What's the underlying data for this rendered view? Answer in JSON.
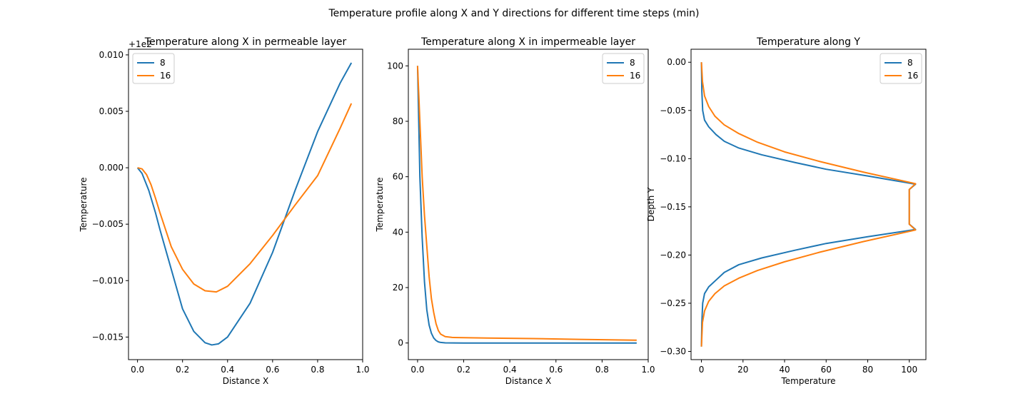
{
  "suptitle": "Temperature profile along X and Y directions for different time steps (min)",
  "colors": {
    "s8": "#1f77b4",
    "s16": "#ff7f0e"
  },
  "chart_data": [
    {
      "type": "line",
      "title": "Temperature along X in permeable layer",
      "xlabel": "Distance X",
      "ylabel": "Temperature",
      "offset_label": "+1e2",
      "xlim": [
        -0.04,
        1.0
      ],
      "ylim": [
        -0.017,
        0.0105
      ],
      "xticks": [
        0.0,
        0.2,
        0.4,
        0.6,
        0.8,
        1.0
      ],
      "xtick_labels": [
        "0.0",
        "0.2",
        "0.4",
        "0.6",
        "0.8",
        "1.0"
      ],
      "yticks": [
        -0.015,
        -0.01,
        -0.005,
        0.0,
        0.005,
        0.01
      ],
      "ytick_labels": [
        "−0.015",
        "−0.010",
        "−0.005",
        "0.000",
        "0.005",
        "0.010"
      ],
      "legend_position": "top-left",
      "series": [
        {
          "name": "8",
          "color": "#1f77b4",
          "x": [
            0.0,
            0.02,
            0.05,
            0.08,
            0.1,
            0.15,
            0.2,
            0.25,
            0.3,
            0.33,
            0.36,
            0.4,
            0.5,
            0.6,
            0.7,
            0.8,
            0.9,
            0.95
          ],
          "y": [
            0.0,
            -0.0005,
            -0.002,
            -0.004,
            -0.0055,
            -0.009,
            -0.0125,
            -0.0145,
            -0.0155,
            -0.0157,
            -0.0156,
            -0.015,
            -0.012,
            -0.0075,
            -0.002,
            0.0032,
            0.0075,
            0.0093
          ]
        },
        {
          "name": "16",
          "color": "#ff7f0e",
          "x": [
            0.0,
            0.02,
            0.04,
            0.06,
            0.08,
            0.1,
            0.15,
            0.2,
            0.25,
            0.3,
            0.35,
            0.4,
            0.5,
            0.6,
            0.7,
            0.8,
            0.9,
            0.95
          ],
          "y": [
            0.0,
            -0.0001,
            -0.0006,
            -0.0015,
            -0.0027,
            -0.004,
            -0.007,
            -0.009,
            -0.0103,
            -0.0109,
            -0.011,
            -0.0105,
            -0.0085,
            -0.006,
            -0.0033,
            -0.0007,
            0.0035,
            0.0057
          ]
        }
      ]
    },
    {
      "type": "line",
      "title": "Temperature along X in impermeable layer",
      "xlabel": "Distance X",
      "ylabel": "Temperature",
      "xlim": [
        -0.04,
        1.0
      ],
      "ylim": [
        -6.0,
        106.0
      ],
      "xticks": [
        0.0,
        0.2,
        0.4,
        0.6,
        0.8,
        1.0
      ],
      "xtick_labels": [
        "0.0",
        "0.2",
        "0.4",
        "0.6",
        "0.8",
        "1.0"
      ],
      "yticks": [
        0,
        20,
        40,
        60,
        80,
        100
      ],
      "ytick_labels": [
        "0",
        "20",
        "40",
        "60",
        "80",
        "100"
      ],
      "legend_position": "top-right",
      "series": [
        {
          "name": "8",
          "color": "#1f77b4",
          "x": [
            0.0,
            0.005,
            0.01,
            0.02,
            0.03,
            0.04,
            0.05,
            0.06,
            0.07,
            0.08,
            0.09,
            0.1,
            0.12,
            0.2,
            0.5,
            0.95
          ],
          "y": [
            100,
            80,
            60,
            38,
            22,
            12,
            6.5,
            3.5,
            1.8,
            0.9,
            0.4,
            0.2,
            0.05,
            0.0,
            0.0,
            0.0
          ]
        },
        {
          "name": "16",
          "color": "#ff7f0e",
          "x": [
            0.0,
            0.005,
            0.01,
            0.02,
            0.03,
            0.04,
            0.05,
            0.06,
            0.07,
            0.08,
            0.09,
            0.1,
            0.12,
            0.15,
            0.3,
            0.5,
            0.7,
            0.95
          ],
          "y": [
            100,
            90,
            80,
            60,
            46,
            35,
            24,
            16,
            11,
            7,
            4.5,
            3.2,
            2.3,
            2.0,
            1.8,
            1.6,
            1.3,
            1.0
          ]
        }
      ]
    },
    {
      "type": "line",
      "title": "Temperature along Y",
      "xlabel": "Temperature",
      "ylabel": "Depth Y",
      "xlim": [
        -5.0,
        108.0
      ],
      "ylim": [
        -0.3085,
        0.0135
      ],
      "xticks": [
        0,
        20,
        40,
        60,
        80,
        100
      ],
      "xtick_labels": [
        "0",
        "20",
        "40",
        "60",
        "80",
        "100"
      ],
      "yticks": [
        0.0,
        -0.05,
        -0.1,
        -0.15,
        -0.2,
        -0.25,
        -0.3
      ],
      "ytick_labels": [
        "0.00",
        "−0.05",
        "−0.10",
        "−0.15",
        "−0.20",
        "−0.25",
        "−0.30"
      ],
      "legend_position": "top-right",
      "series": [
        {
          "name": "8",
          "color": "#1f77b4",
          "x": [
            0.0,
            0.2,
            0.6,
            1.5,
            3.5,
            7,
            11,
            18,
            29,
            45,
            60,
            80,
            103,
            100,
            100,
            100,
            103,
            80,
            60,
            45,
            29,
            18,
            11,
            7,
            3.5,
            1.5,
            0.6,
            0.2,
            0.0
          ],
          "y": [
            0.0,
            -0.03,
            -0.05,
            -0.06,
            -0.067,
            -0.075,
            -0.082,
            -0.089,
            -0.096,
            -0.104,
            -0.111,
            -0.118,
            -0.1265,
            -0.132,
            -0.15,
            -0.168,
            -0.1735,
            -0.181,
            -0.188,
            -0.195,
            -0.203,
            -0.21,
            -0.218,
            -0.226,
            -0.233,
            -0.24,
            -0.25,
            -0.27,
            -0.295
          ]
        },
        {
          "name": "16",
          "color": "#ff7f0e",
          "x": [
            0.0,
            0.5,
            1.5,
            3.5,
            6.5,
            11,
            18,
            27,
            40,
            57,
            78,
            103,
            100,
            100,
            100,
            103,
            78,
            57,
            40,
            27,
            18,
            11,
            6.5,
            3.5,
            1.5,
            0.5,
            0.0
          ],
          "y": [
            0.0,
            -0.02,
            -0.035,
            -0.046,
            -0.056,
            -0.065,
            -0.074,
            -0.083,
            -0.093,
            -0.103,
            -0.114,
            -0.126,
            -0.132,
            -0.15,
            -0.168,
            -0.174,
            -0.186,
            -0.197,
            -0.207,
            -0.216,
            -0.224,
            -0.232,
            -0.24,
            -0.248,
            -0.258,
            -0.27,
            -0.295
          ]
        }
      ]
    }
  ]
}
